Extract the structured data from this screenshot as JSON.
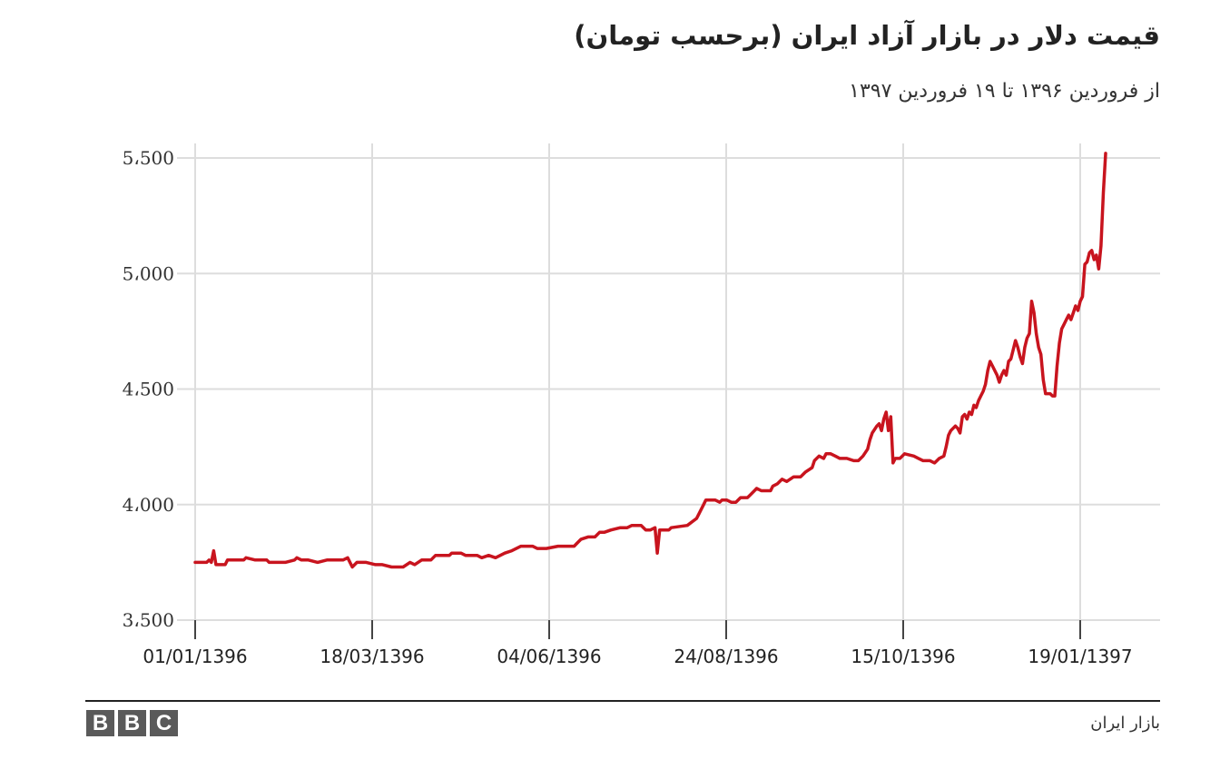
{
  "chart_data": {
    "type": "line",
    "title": "قیمت دلار در بازار آزاد ایران (برحسب تومان)",
    "subtitle": "از فروردین ۱۳۹۶ تا ۱۹ فروردین ۱۳۹۷",
    "x_ticks": [
      "01/01/1396",
      "18/03/1396",
      "04/06/1396",
      "24/08/1396",
      "15/10/1396",
      "19/01/1397"
    ],
    "y_ticks": [
      {
        "value": 3500,
        "label": "3،500"
      },
      {
        "value": 4000,
        "label": "4،000"
      },
      {
        "value": 4500,
        "label": "4،500"
      },
      {
        "value": 5000,
        "label": "5،000"
      },
      {
        "value": 5500,
        "label": "5،500"
      }
    ],
    "ylim": [
      3500,
      5500
    ],
    "xlim": [
      0,
      383
    ],
    "grid": true,
    "line_color": "#c8141e",
    "series": [
      {
        "points": [
          [
            0,
            3750
          ],
          [
            5,
            3750
          ],
          [
            6,
            3760
          ],
          [
            7,
            3750
          ],
          [
            8,
            3800
          ],
          [
            9,
            3740
          ],
          [
            13,
            3740
          ],
          [
            14,
            3760
          ],
          [
            21,
            3760
          ],
          [
            22,
            3770
          ],
          [
            26,
            3760
          ],
          [
            31,
            3760
          ],
          [
            32,
            3750
          ],
          [
            39,
            3750
          ],
          [
            43,
            3760
          ],
          [
            44,
            3770
          ],
          [
            46,
            3760
          ],
          [
            49,
            3760
          ],
          [
            53,
            3750
          ],
          [
            57,
            3760
          ],
          [
            64,
            3760
          ],
          [
            66,
            3770
          ],
          [
            68,
            3730
          ],
          [
            70,
            3750
          ],
          [
            74,
            3750
          ],
          [
            78,
            3740
          ],
          [
            81,
            3740
          ],
          [
            85,
            3730
          ],
          [
            90,
            3730
          ],
          [
            93,
            3750
          ],
          [
            95,
            3740
          ],
          [
            98,
            3760
          ],
          [
            102,
            3760
          ],
          [
            104,
            3780
          ],
          [
            110,
            3780
          ],
          [
            111,
            3790
          ],
          [
            115,
            3790
          ],
          [
            117,
            3780
          ],
          [
            122,
            3780
          ],
          [
            124,
            3770
          ],
          [
            127,
            3780
          ],
          [
            130,
            3770
          ],
          [
            134,
            3790
          ],
          [
            137,
            3800
          ],
          [
            141,
            3820
          ],
          [
            146,
            3820
          ],
          [
            148,
            3810
          ],
          [
            152,
            3810
          ],
          [
            157,
            3820
          ],
          [
            164,
            3820
          ],
          [
            165,
            3830
          ],
          [
            167,
            3850
          ],
          [
            170,
            3860
          ],
          [
            173,
            3860
          ],
          [
            175,
            3880
          ],
          [
            177,
            3880
          ],
          [
            180,
            3890
          ],
          [
            184,
            3900
          ],
          [
            187,
            3900
          ],
          [
            189,
            3910
          ],
          [
            193,
            3910
          ],
          [
            195,
            3890
          ],
          [
            197,
            3890
          ],
          [
            199,
            3900
          ],
          [
            200,
            3790
          ],
          [
            201,
            3890
          ],
          [
            205,
            3890
          ],
          [
            206,
            3900
          ],
          [
            213,
            3910
          ],
          [
            217,
            3940
          ],
          [
            218,
            3960
          ],
          [
            220,
            4000
          ],
          [
            221,
            4020
          ],
          [
            225,
            4020
          ],
          [
            227,
            4010
          ],
          [
            228,
            4020
          ],
          [
            230,
            4020
          ],
          [
            232,
            4010
          ],
          [
            234,
            4010
          ],
          [
            236,
            4030
          ],
          [
            239,
            4030
          ],
          [
            240,
            4040
          ],
          [
            242,
            4060
          ],
          [
            243,
            4070
          ],
          [
            245,
            4060
          ],
          [
            249,
            4060
          ],
          [
            250,
            4080
          ],
          [
            252,
            4090
          ],
          [
            254,
            4110
          ],
          [
            256,
            4100
          ],
          [
            259,
            4120
          ],
          [
            262,
            4120
          ],
          [
            264,
            4140
          ],
          [
            267,
            4160
          ],
          [
            268,
            4190
          ],
          [
            270,
            4210
          ],
          [
            272,
            4200
          ],
          [
            273,
            4220
          ],
          [
            275,
            4220
          ],
          [
            277,
            4210
          ],
          [
            279,
            4200
          ],
          [
            282,
            4200
          ],
          [
            285,
            4190
          ],
          [
            287,
            4190
          ],
          [
            289,
            4210
          ],
          [
            291,
            4240
          ],
          [
            292,
            4280
          ],
          [
            293,
            4310
          ],
          [
            295,
            4340
          ],
          [
            296,
            4350
          ],
          [
            297,
            4320
          ],
          [
            298,
            4370
          ],
          [
            299,
            4400
          ],
          [
            300,
            4320
          ],
          [
            301,
            4380
          ],
          [
            302,
            4180
          ],
          [
            303,
            4200
          ],
          [
            305,
            4200
          ],
          [
            306,
            4210
          ],
          [
            307,
            4220
          ],
          [
            311,
            4210
          ],
          [
            313,
            4200
          ],
          [
            315,
            4190
          ],
          [
            318,
            4190
          ],
          [
            320,
            4180
          ],
          [
            322,
            4200
          ],
          [
            324,
            4210
          ],
          [
            325,
            4250
          ],
          [
            326,
            4300
          ],
          [
            327,
            4320
          ],
          [
            329,
            4340
          ],
          [
            330,
            4330
          ],
          [
            331,
            4310
          ],
          [
            332,
            4380
          ],
          [
            333,
            4390
          ],
          [
            334,
            4370
          ],
          [
            335,
            4400
          ],
          [
            336,
            4390
          ],
          [
            337,
            4430
          ],
          [
            338,
            4420
          ],
          [
            339,
            4450
          ],
          [
            340,
            4470
          ],
          [
            341,
            4490
          ],
          [
            342,
            4520
          ],
          [
            343,
            4580
          ],
          [
            344,
            4620
          ],
          [
            345,
            4600
          ],
          [
            347,
            4560
          ],
          [
            348,
            4530
          ],
          [
            349,
            4560
          ],
          [
            350,
            4580
          ],
          [
            351,
            4560
          ],
          [
            352,
            4620
          ],
          [
            353,
            4630
          ],
          [
            354,
            4670
          ],
          [
            355,
            4710
          ],
          [
            356,
            4680
          ],
          [
            357,
            4640
          ],
          [
            358,
            4610
          ],
          [
            359,
            4680
          ],
          [
            360,
            4720
          ],
          [
            361,
            4740
          ],
          [
            362,
            4880
          ],
          [
            363,
            4830
          ],
          [
            364,
            4740
          ],
          [
            365,
            4680
          ],
          [
            366,
            4650
          ],
          [
            367,
            4540
          ],
          [
            368,
            4480
          ],
          [
            369,
            4480
          ],
          [
            370,
            4480
          ],
          [
            371,
            4470
          ],
          [
            372,
            4470
          ],
          [
            373,
            4600
          ],
          [
            374,
            4700
          ],
          [
            375,
            4760
          ],
          [
            376,
            4780
          ],
          [
            377,
            4800
          ],
          [
            378,
            4820
          ],
          [
            379,
            4800
          ],
          [
            380,
            4830
          ],
          [
            381,
            4860
          ],
          [
            382,
            4840
          ],
          [
            383,
            4880
          ],
          [
            384,
            4900
          ],
          [
            385,
            5040
          ],
          [
            386,
            5050
          ],
          [
            387,
            5090
          ],
          [
            388,
            5100
          ],
          [
            389,
            5060
          ],
          [
            390,
            5080
          ],
          [
            391,
            5020
          ],
          [
            392,
            5120
          ],
          [
            393,
            5350
          ],
          [
            394,
            5520
          ]
        ]
      }
    ]
  },
  "footer": {
    "logo": [
      "B",
      "B",
      "C"
    ],
    "source": "بازار ایران"
  }
}
